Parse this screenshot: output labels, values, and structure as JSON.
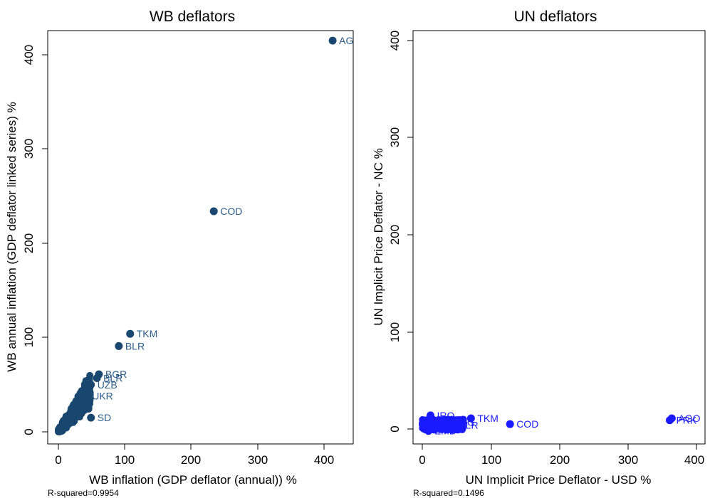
{
  "chart_data": [
    {
      "type": "scatter",
      "title": "WB deflators",
      "xlabel": "WB inflation (GDP deflator (annual)) %",
      "ylabel": "WB annual inflation (GDP deflator linked series) %",
      "xlim": [
        -5,
        425
      ],
      "ylim": [
        -15,
        425
      ],
      "xticks": [
        0,
        100,
        200,
        300,
        400
      ],
      "yticks": [
        0,
        100,
        200,
        300,
        400
      ],
      "note": "R-squared=0.9954",
      "marker_color": "#1a476f",
      "label_color": "#2b5d8a",
      "labeled_points": [
        {
          "label": "AGO",
          "x": 413,
          "y": 415
        },
        {
          "label": "COD",
          "x": 234,
          "y": 234
        },
        {
          "label": "TKM",
          "x": 108,
          "y": 104
        },
        {
          "label": "BLR",
          "x": 91,
          "y": 91
        },
        {
          "label": "BGR",
          "x": 61,
          "y": 61
        },
        {
          "label": "BLR",
          "x": 58,
          "y": 57
        },
        {
          "label": "UZB",
          "x": 49,
          "y": 50
        },
        {
          "label": "UKR",
          "x": 41,
          "y": 38
        },
        {
          "label": "SD",
          "x": 49,
          "y": 15
        }
      ]
    },
    {
      "type": "scatter",
      "title": "UN deflators",
      "xlabel": "UN Implicit Price Deflator - USD %",
      "ylabel": "UN Implicit Price Deflator - NC %",
      "xlim": [
        -5,
        408
      ],
      "ylim": [
        -15,
        410
      ],
      "xticks": [
        0,
        100,
        200,
        300,
        400
      ],
      "yticks": [
        0,
        100,
        200,
        300,
        400
      ],
      "note": "R-squared=0.1496",
      "marker_color": "#1a1aff",
      "label_color": "#1a1aff",
      "labeled_points": [
        {
          "label": "AGO",
          "x": 364,
          "y": 11
        },
        {
          "label": "PRK",
          "x": 361,
          "y": 9
        },
        {
          "label": "COD",
          "x": 128,
          "y": 5
        },
        {
          "label": "TKM",
          "x": 71,
          "y": 11
        },
        {
          "label": "G",
          "x": 56,
          "y": 7
        },
        {
          "label": "BLR",
          "x": 44,
          "y": 4
        },
        {
          "label": "IRQ",
          "x": 12,
          "y": 14
        },
        {
          "label": "ZMB",
          "x": 9,
          "y": -2
        }
      ]
    }
  ]
}
